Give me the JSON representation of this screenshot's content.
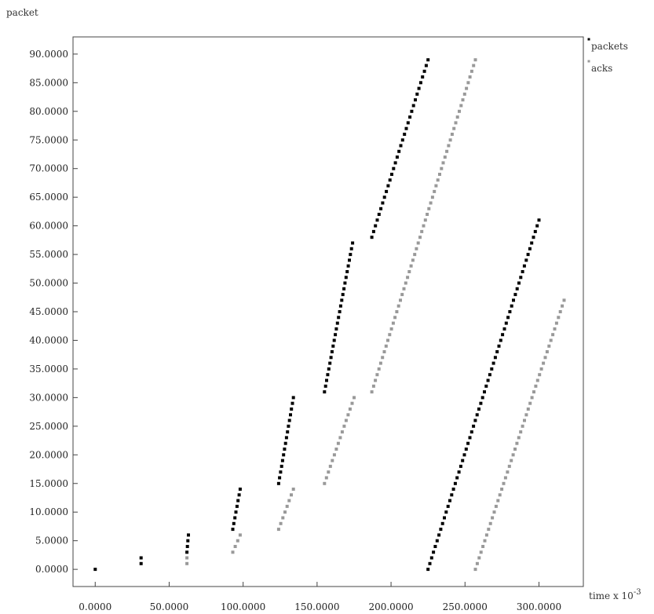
{
  "chart_data": {
    "type": "scatter",
    "title": "",
    "ylabel": "packet",
    "xlabel": "time x 10",
    "xlabel_exponent": "-3",
    "xlim": [
      -15,
      330
    ],
    "ylim": [
      -3,
      93
    ],
    "x_ticks": [
      0,
      50,
      100,
      150,
      200,
      250,
      300
    ],
    "x_tick_labels": [
      "0.0000",
      "50.0000",
      "100.0000",
      "150.0000",
      "200.0000",
      "250.0000",
      "300.0000"
    ],
    "y_ticks": [
      0,
      5,
      10,
      15,
      20,
      25,
      30,
      35,
      40,
      45,
      50,
      55,
      60,
      65,
      70,
      75,
      80,
      85,
      90
    ],
    "y_tick_labels": [
      "0.0000",
      "5.0000",
      "10.0000",
      "15.0000",
      "20.0000",
      "25.0000",
      "30.0000",
      "35.0000",
      "40.0000",
      "45.0000",
      "50.0000",
      "55.0000",
      "60.0000",
      "65.0000",
      "70.0000",
      "75.0000",
      "80.0000",
      "85.0000",
      "90.0000"
    ],
    "legend": {
      "placement": "outside-top-right",
      "entries": [
        "packets",
        "acks"
      ]
    },
    "grid": false,
    "series": [
      {
        "name": "packets",
        "color": "#000000",
        "segments": [
          {
            "x_start": 0,
            "x_end": 0,
            "y_start": 0,
            "y_end": 0
          },
          {
            "x_start": 31,
            "x_end": 31,
            "y_start": 1,
            "y_end": 2
          },
          {
            "x_start": 62,
            "x_end": 63,
            "y_start": 3,
            "y_end": 6
          },
          {
            "x_start": 93,
            "x_end": 98,
            "y_start": 7,
            "y_end": 14
          },
          {
            "x_start": 124,
            "x_end": 134,
            "y_start": 15,
            "y_end": 30
          },
          {
            "x_start": 155,
            "x_end": 174,
            "y_start": 31,
            "y_end": 57
          },
          {
            "x_start": 187,
            "x_end": 225,
            "y_start": 58,
            "y_end": 89
          },
          {
            "x_start": 225,
            "x_end": 300,
            "y_start": 0,
            "y_end": 61
          }
        ]
      },
      {
        "name": "acks",
        "color": "#999999",
        "segments": [
          {
            "x_start": 62,
            "x_end": 62,
            "y_start": 1,
            "y_end": 2
          },
          {
            "x_start": 93,
            "x_end": 98,
            "y_start": 3,
            "y_end": 6
          },
          {
            "x_start": 124,
            "x_end": 134,
            "y_start": 7,
            "y_end": 14
          },
          {
            "x_start": 155,
            "x_end": 175,
            "y_start": 15,
            "y_end": 30
          },
          {
            "x_start": 187,
            "x_end": 257,
            "y_start": 31,
            "y_end": 89
          },
          {
            "x_start": 257,
            "x_end": 317,
            "y_start": 0,
            "y_end": 47
          }
        ]
      }
    ]
  }
}
